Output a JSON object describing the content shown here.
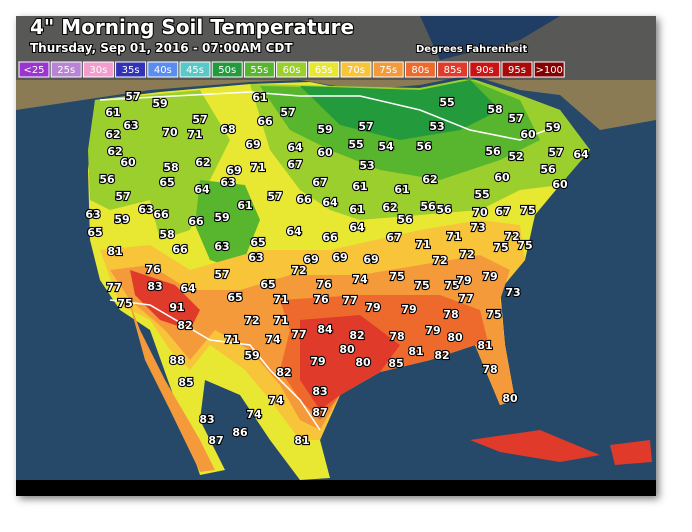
{
  "header": {
    "title": "4\" Morning Soil Temperature",
    "subtitle": "Thursday, Sep 01, 2016 - 07:00AM CDT",
    "units": "Degrees Fahrenheit"
  },
  "legend": [
    {
      "label": "<25",
      "color": "#9b35d0"
    },
    {
      "label": "25s",
      "color": "#b983d6"
    },
    {
      "label": "30s",
      "color": "#f59ccf"
    },
    {
      "label": "35s",
      "color": "#3232b8"
    },
    {
      "label": "40s",
      "color": "#5b8cf0"
    },
    {
      "label": "45s",
      "color": "#58c8c8"
    },
    {
      "label": "50s",
      "color": "#239a3b"
    },
    {
      "label": "55s",
      "color": "#58b52e"
    },
    {
      "label": "60s",
      "color": "#9bcf2e"
    },
    {
      "label": "65s",
      "color": "#e8e832"
    },
    {
      "label": "70s",
      "color": "#f8c43a"
    },
    {
      "label": "75s",
      "color": "#f59a3a"
    },
    {
      "label": "80s",
      "color": "#ee6a2c"
    },
    {
      "label": "85s",
      "color": "#e03a2a"
    },
    {
      "label": "90s",
      "color": "#c81414"
    },
    {
      "label": "95s",
      "color": "#a80a0a"
    },
    {
      "label": ">100",
      "color": "#840000"
    }
  ],
  "stations": [
    57,
    59,
    61,
    57,
    55,
    58,
    57,
    59,
    61,
    63,
    70,
    57,
    68,
    66,
    59,
    57,
    53,
    60,
    62,
    62,
    71,
    69,
    64,
    60,
    55,
    54,
    56,
    56,
    52,
    57,
    64,
    60,
    58,
    62,
    69,
    71,
    67,
    53,
    62,
    60,
    56,
    56,
    65,
    64,
    63,
    67,
    61,
    61,
    55,
    60,
    57,
    57,
    66,
    64,
    61,
    62,
    56,
    56,
    56,
    70,
    67,
    75,
    63,
    59,
    63,
    66,
    66,
    59,
    61,
    64,
    66,
    64,
    67,
    71,
    71,
    73,
    72,
    75,
    65,
    58,
    66,
    63,
    65,
    63,
    72,
    69,
    69,
    69,
    74,
    75,
    72,
    72,
    75,
    79,
    81,
    76,
    64,
    57,
    65,
    76,
    75,
    75,
    79,
    77,
    73,
    77,
    83,
    91,
    65,
    71,
    76,
    77,
    79,
    79,
    78,
    75,
    75,
    82,
    72,
    71,
    77,
    84,
    82,
    78,
    79,
    80,
    81,
    71,
    74,
    80,
    80,
    85,
    81,
    82,
    59,
    82,
    79,
    88,
    78,
    85,
    83,
    80,
    74,
    74,
    87,
    83,
    86,
    87,
    81
  ]
}
